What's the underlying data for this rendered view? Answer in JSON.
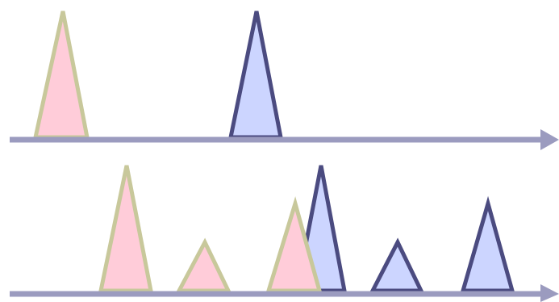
{
  "colors": {
    "axis": "#9b9bbf",
    "pink_fill": "#ffccd9",
    "pink_stroke": "#c8c89b",
    "blue_fill": "#ccd5ff",
    "blue_stroke": "#4b4b80"
  },
  "rows": [
    {
      "name": "top-row",
      "triangles": [
        {
          "kind": "pink",
          "size": "large"
        },
        {
          "kind": "blue",
          "size": "large"
        }
      ]
    },
    {
      "name": "bottom-row",
      "triangles": [
        {
          "kind": "pink",
          "size": "large"
        },
        {
          "kind": "pink",
          "size": "small"
        },
        {
          "kind": "blue",
          "size": "large"
        },
        {
          "kind": "pink",
          "size": "medium"
        },
        {
          "kind": "blue",
          "size": "small"
        },
        {
          "kind": "blue",
          "size": "medium"
        }
      ]
    }
  ]
}
